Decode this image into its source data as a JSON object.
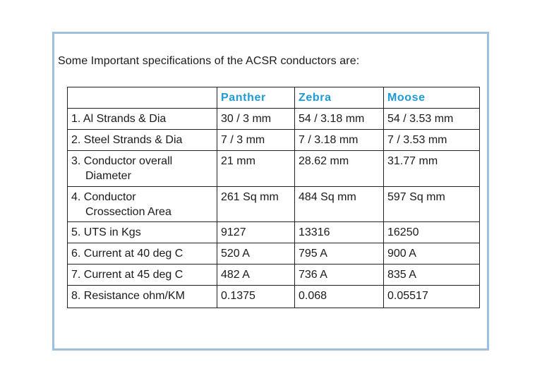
{
  "heading": "Some Important specifications of the ACSR conductors are:",
  "table": {
    "header": [
      "",
      "Panther",
      "Zebra",
      "Moose"
    ],
    "rows": [
      {
        "param": [
          "1.  Al Strands & Dia"
        ],
        "values": [
          "30 / 3 mm",
          "54 / 3.18 mm",
          "54 / 3.53 mm"
        ]
      },
      {
        "param": [
          "2. Steel Strands & Dia"
        ],
        "values": [
          "7 / 3 mm",
          "7 / 3.18 mm",
          "7 / 3.53  mm"
        ]
      },
      {
        "param": [
          "3. Conductor overall",
          "Diameter"
        ],
        "values": [
          "21 mm",
          "28.62 mm",
          "31.77 mm"
        ]
      },
      {
        "param": [
          "4. Conductor",
          "Crossection Area"
        ],
        "values": [
          "261 Sq mm",
          "484 Sq mm",
          "597 Sq mm"
        ]
      },
      {
        "param": [
          "5. UTS in Kgs"
        ],
        "values": [
          "9127",
          "13316",
          "16250"
        ]
      },
      {
        "param": [
          "6. Current at 40 deg C"
        ],
        "values": [
          "520 A",
          "795 A",
          "900 A"
        ]
      },
      {
        "param": [
          "7. Current at 45 deg C"
        ],
        "values": [
          "482 A",
          "736 A",
          "835 A"
        ]
      },
      {
        "param": [
          "8. Resistance ohm/KM"
        ],
        "values": [
          "0.1375",
          "0.068",
          "0.05517"
        ]
      }
    ]
  },
  "colors": {
    "frame_border": "#9dbfe0",
    "header_text": "#1e9ad6"
  }
}
